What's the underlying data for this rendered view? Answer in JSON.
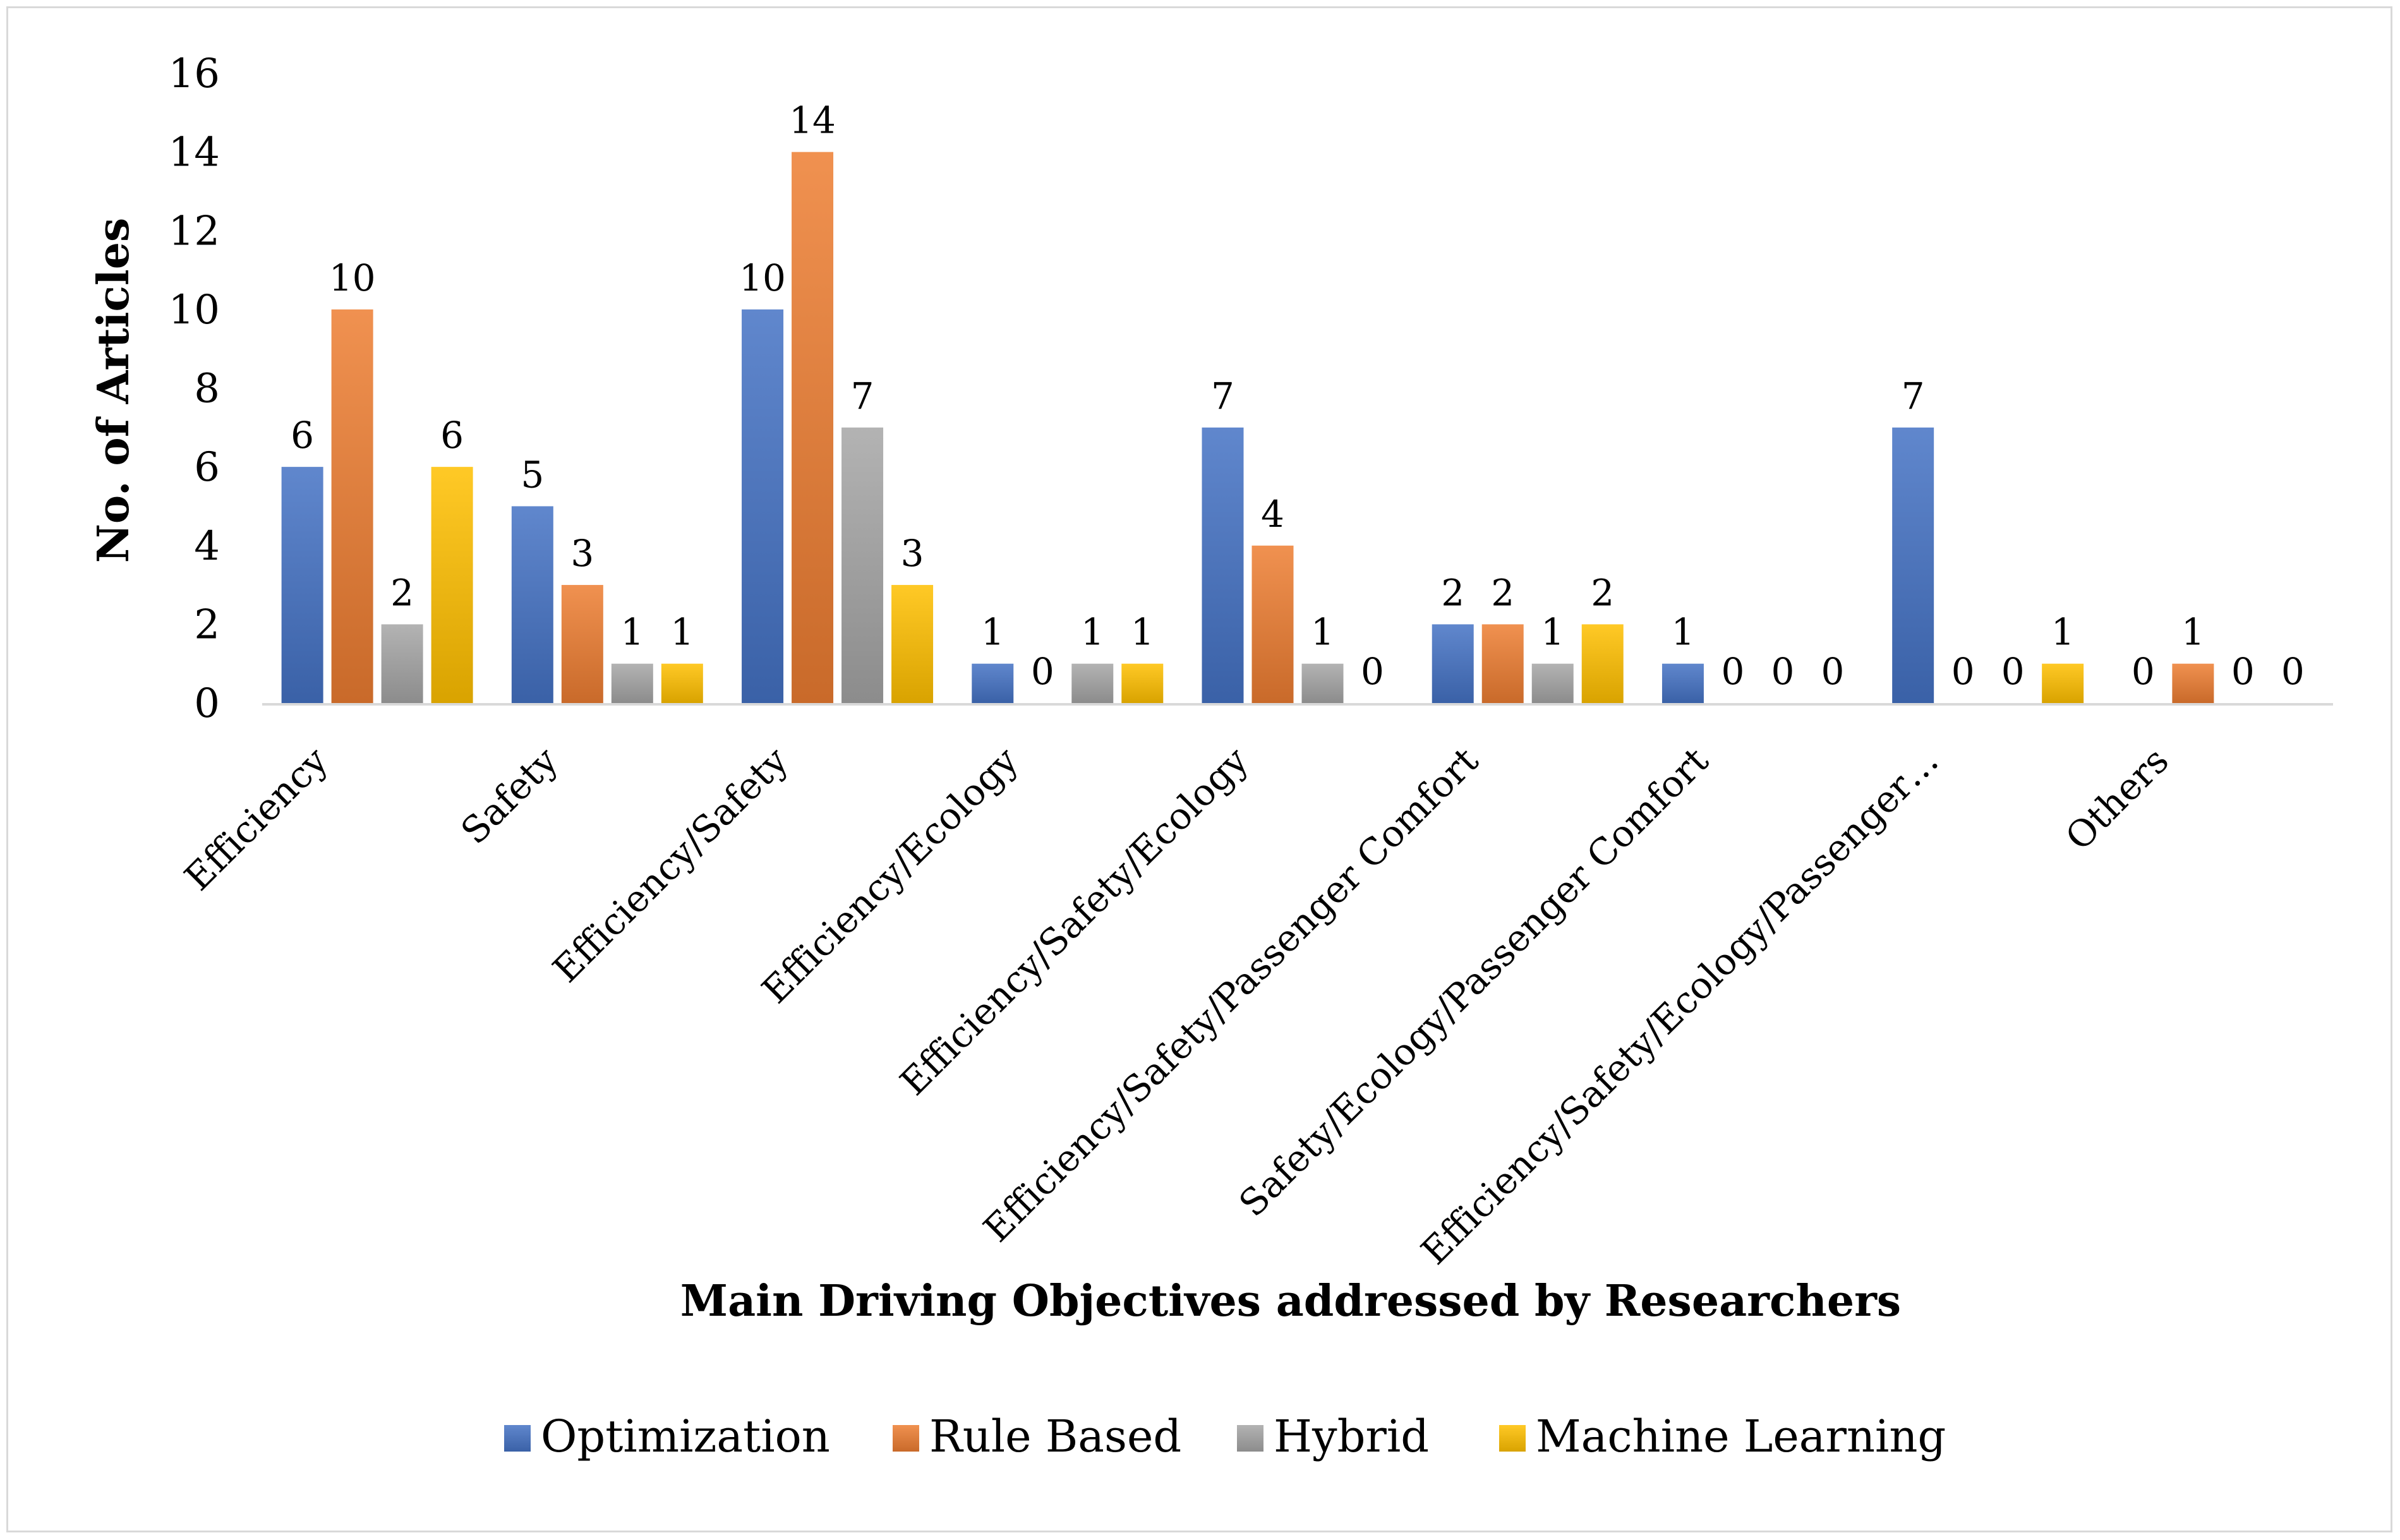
{
  "chart_data": {
    "type": "bar",
    "xlabel": "Main Driving Objectives addressed by Researchers",
    "ylabel": "No. of Articles",
    "ylim": [
      0,
      16
    ],
    "yticks": [
      0,
      2,
      4,
      6,
      8,
      10,
      12,
      14,
      16
    ],
    "grid": false,
    "legend_position": "bottom",
    "categories": [
      "Efficiency",
      "Safety",
      "Efficiency/Safety",
      "Efficiency/Ecology",
      "Efficiency/Safety/Ecology",
      "Efficiency/Safety/Passenger Comfort",
      "Safety/Ecology/Passenger Comfort",
      "Efficiency/Safety/Ecology/Passenger…",
      "Others"
    ],
    "series": [
      {
        "name": "Optimization",
        "color": "#4472c4",
        "values": [
          6,
          5,
          10,
          1,
          7,
          2,
          1,
          7,
          0
        ]
      },
      {
        "name": "Rule Based",
        "color": "#ed7d31",
        "values": [
          10,
          3,
          14,
          0,
          4,
          2,
          0,
          0,
          1
        ]
      },
      {
        "name": "Hybrid",
        "color": "#a5a5a5",
        "values": [
          2,
          1,
          7,
          1,
          1,
          1,
          0,
          0,
          0
        ]
      },
      {
        "name": "Machine Learning",
        "color": "#ffc000",
        "values": [
          6,
          1,
          3,
          1,
          0,
          2,
          0,
          1,
          0
        ]
      }
    ]
  }
}
